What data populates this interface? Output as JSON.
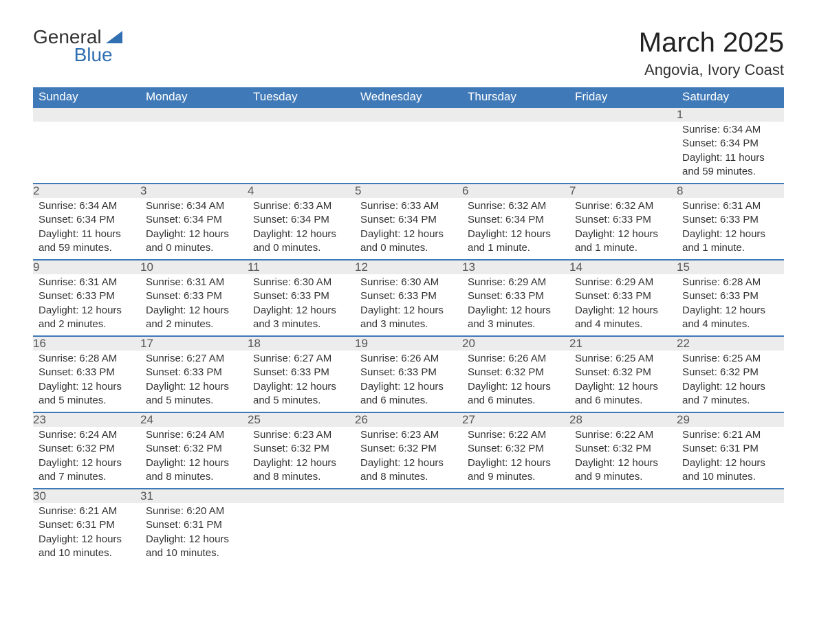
{
  "brand": {
    "top": "General",
    "bottom": "Blue",
    "accent_color": "#2f6fb2"
  },
  "title": "March 2025",
  "location": "Angovia, Ivory Coast",
  "colors": {
    "header_bg": "#3f79b7",
    "header_fg": "#ffffff",
    "row_divider": "#3f79b7",
    "daynum_bg": "#ececec",
    "text": "#333333"
  },
  "weekdays": [
    "Sunday",
    "Monday",
    "Tuesday",
    "Wednesday",
    "Thursday",
    "Friday",
    "Saturday"
  ],
  "weeks": [
    [
      null,
      null,
      null,
      null,
      null,
      null,
      {
        "n": "1",
        "sunrise": "6:34 AM",
        "sunset": "6:34 PM",
        "daylight": "11 hours and 59 minutes."
      }
    ],
    [
      {
        "n": "2",
        "sunrise": "6:34 AM",
        "sunset": "6:34 PM",
        "daylight": "11 hours and 59 minutes."
      },
      {
        "n": "3",
        "sunrise": "6:34 AM",
        "sunset": "6:34 PM",
        "daylight": "12 hours and 0 minutes."
      },
      {
        "n": "4",
        "sunrise": "6:33 AM",
        "sunset": "6:34 PM",
        "daylight": "12 hours and 0 minutes."
      },
      {
        "n": "5",
        "sunrise": "6:33 AM",
        "sunset": "6:34 PM",
        "daylight": "12 hours and 0 minutes."
      },
      {
        "n": "6",
        "sunrise": "6:32 AM",
        "sunset": "6:34 PM",
        "daylight": "12 hours and 1 minute."
      },
      {
        "n": "7",
        "sunrise": "6:32 AM",
        "sunset": "6:33 PM",
        "daylight": "12 hours and 1 minute."
      },
      {
        "n": "8",
        "sunrise": "6:31 AM",
        "sunset": "6:33 PM",
        "daylight": "12 hours and 1 minute."
      }
    ],
    [
      {
        "n": "9",
        "sunrise": "6:31 AM",
        "sunset": "6:33 PM",
        "daylight": "12 hours and 2 minutes."
      },
      {
        "n": "10",
        "sunrise": "6:31 AM",
        "sunset": "6:33 PM",
        "daylight": "12 hours and 2 minutes."
      },
      {
        "n": "11",
        "sunrise": "6:30 AM",
        "sunset": "6:33 PM",
        "daylight": "12 hours and 3 minutes."
      },
      {
        "n": "12",
        "sunrise": "6:30 AM",
        "sunset": "6:33 PM",
        "daylight": "12 hours and 3 minutes."
      },
      {
        "n": "13",
        "sunrise": "6:29 AM",
        "sunset": "6:33 PM",
        "daylight": "12 hours and 3 minutes."
      },
      {
        "n": "14",
        "sunrise": "6:29 AM",
        "sunset": "6:33 PM",
        "daylight": "12 hours and 4 minutes."
      },
      {
        "n": "15",
        "sunrise": "6:28 AM",
        "sunset": "6:33 PM",
        "daylight": "12 hours and 4 minutes."
      }
    ],
    [
      {
        "n": "16",
        "sunrise": "6:28 AM",
        "sunset": "6:33 PM",
        "daylight": "12 hours and 5 minutes."
      },
      {
        "n": "17",
        "sunrise": "6:27 AM",
        "sunset": "6:33 PM",
        "daylight": "12 hours and 5 minutes."
      },
      {
        "n": "18",
        "sunrise": "6:27 AM",
        "sunset": "6:33 PM",
        "daylight": "12 hours and 5 minutes."
      },
      {
        "n": "19",
        "sunrise": "6:26 AM",
        "sunset": "6:33 PM",
        "daylight": "12 hours and 6 minutes."
      },
      {
        "n": "20",
        "sunrise": "6:26 AM",
        "sunset": "6:32 PM",
        "daylight": "12 hours and 6 minutes."
      },
      {
        "n": "21",
        "sunrise": "6:25 AM",
        "sunset": "6:32 PM",
        "daylight": "12 hours and 6 minutes."
      },
      {
        "n": "22",
        "sunrise": "6:25 AM",
        "sunset": "6:32 PM",
        "daylight": "12 hours and 7 minutes."
      }
    ],
    [
      {
        "n": "23",
        "sunrise": "6:24 AM",
        "sunset": "6:32 PM",
        "daylight": "12 hours and 7 minutes."
      },
      {
        "n": "24",
        "sunrise": "6:24 AM",
        "sunset": "6:32 PM",
        "daylight": "12 hours and 8 minutes."
      },
      {
        "n": "25",
        "sunrise": "6:23 AM",
        "sunset": "6:32 PM",
        "daylight": "12 hours and 8 minutes."
      },
      {
        "n": "26",
        "sunrise": "6:23 AM",
        "sunset": "6:32 PM",
        "daylight": "12 hours and 8 minutes."
      },
      {
        "n": "27",
        "sunrise": "6:22 AM",
        "sunset": "6:32 PM",
        "daylight": "12 hours and 9 minutes."
      },
      {
        "n": "28",
        "sunrise": "6:22 AM",
        "sunset": "6:32 PM",
        "daylight": "12 hours and 9 minutes."
      },
      {
        "n": "29",
        "sunrise": "6:21 AM",
        "sunset": "6:31 PM",
        "daylight": "12 hours and 10 minutes."
      }
    ],
    [
      {
        "n": "30",
        "sunrise": "6:21 AM",
        "sunset": "6:31 PM",
        "daylight": "12 hours and 10 minutes."
      },
      {
        "n": "31",
        "sunrise": "6:20 AM",
        "sunset": "6:31 PM",
        "daylight": "12 hours and 10 minutes."
      },
      null,
      null,
      null,
      null,
      null
    ]
  ],
  "labels": {
    "sunrise_prefix": "Sunrise: ",
    "sunset_prefix": "Sunset: ",
    "daylight_prefix": "Daylight: "
  }
}
